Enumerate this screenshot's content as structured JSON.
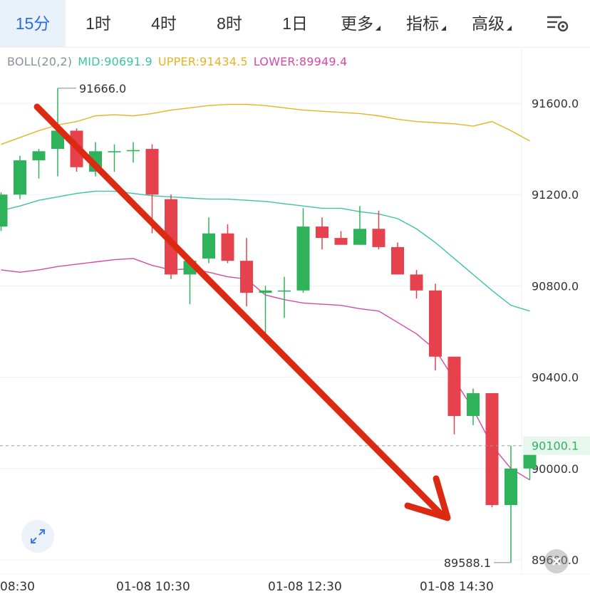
{
  "toolbar": {
    "intervals": [
      "15分",
      "1时",
      "4时",
      "8时",
      "1日"
    ],
    "menus": [
      "更多",
      "指标",
      "高级"
    ],
    "active_index": 0,
    "settings_icon": "chart-settings-icon"
  },
  "indicator": {
    "label": "BOLL(20,2)",
    "mid_text": "MID:90691.9",
    "upper_text": "UPPER:91434.5",
    "lower_text": "LOWER:89949.4",
    "colors": {
      "label": "#8a8f99",
      "mid": "#3cc4a0",
      "upper": "#e6b422",
      "lower": "#d44aa6"
    }
  },
  "chart_data": {
    "type": "candlestick",
    "price_axis": {
      "ticks": [
        91600,
        91200,
        90800,
        90400,
        90000,
        89600
      ],
      "labels": [
        "91600.0",
        "91200.0",
        "90800.0",
        "90400.0",
        "90000.0",
        "89600.0"
      ]
    },
    "time_axis": {
      "labels": [
        "08:30",
        "01-08 10:30",
        "01-08 12:30",
        "01-08 14:30"
      ]
    },
    "high_marker": "91666.0",
    "low_marker": "89588.1",
    "last_price": 90100.1,
    "last_price_label": "90100.1",
    "colors": {
      "up": "#2fb35a",
      "down": "#e5424d",
      "mid": "#3cc4a0",
      "upper": "#e6b422",
      "lower": "#d44aa6",
      "grid": "#eef0f3",
      "arrow": "#dc2a12"
    },
    "candles": [
      {
        "o": 91060,
        "h": 91210,
        "c": 91200,
        "l": 91040
      },
      {
        "o": 91200,
        "h": 91370,
        "c": 91350,
        "l": 91180
      },
      {
        "o": 91350,
        "h": 91400,
        "c": 91390,
        "l": 91270
      },
      {
        "o": 91400,
        "h": 91666,
        "c": 91480,
        "l": 91280
      },
      {
        "o": 91480,
        "h": 91490,
        "c": 91320,
        "l": 91300
      },
      {
        "o": 91300,
        "h": 91430,
        "c": 91390,
        "l": 91280
      },
      {
        "o": 91385,
        "h": 91420,
        "c": 91390,
        "l": 91300
      },
      {
        "o": 91390,
        "h": 91430,
        "c": 91395,
        "l": 91340
      },
      {
        "o": 91400,
        "h": 91420,
        "c": 91200,
        "l": 91030
      },
      {
        "o": 91180,
        "h": 91200,
        "c": 90850,
        "l": 90830
      },
      {
        "o": 90850,
        "h": 90920,
        "c": 90910,
        "l": 90720
      },
      {
        "o": 90920,
        "h": 91100,
        "c": 91030,
        "l": 90900
      },
      {
        "o": 91030,
        "h": 91070,
        "c": 90910,
        "l": 90900
      },
      {
        "o": 90910,
        "h": 91010,
        "c": 90770,
        "l": 90710
      },
      {
        "o": 90770,
        "h": 90800,
        "c": 90780,
        "l": 90560
      },
      {
        "o": 90775,
        "h": 90840,
        "c": 90780,
        "l": 90660
      },
      {
        "o": 90780,
        "h": 91140,
        "c": 91060,
        "l": 90770
      },
      {
        "o": 91060,
        "h": 91100,
        "c": 91010,
        "l": 90960
      },
      {
        "o": 91010,
        "h": 91040,
        "c": 90980,
        "l": 90980
      },
      {
        "o": 90980,
        "h": 91150,
        "c": 91050,
        "l": 90980
      },
      {
        "o": 91050,
        "h": 91130,
        "c": 90970,
        "l": 90960
      },
      {
        "o": 90970,
        "h": 90990,
        "c": 90850,
        "l": 90850
      },
      {
        "o": 90850,
        "h": 90870,
        "c": 90780,
        "l": 90745
      },
      {
        "o": 90780,
        "h": 90810,
        "c": 90490,
        "l": 90430
      },
      {
        "o": 90490,
        "h": 90490,
        "c": 90230,
        "l": 90150
      },
      {
        "o": 90230,
        "h": 90350,
        "c": 90330,
        "l": 90190
      },
      {
        "o": 90330,
        "h": 90330,
        "c": 89840,
        "l": 89830
      },
      {
        "o": 89840,
        "h": 90100,
        "c": 90000,
        "l": 89588.1
      },
      {
        "o": 90000,
        "h": 90125,
        "c": 90100.1,
        "l": 89950
      }
    ],
    "boll_mid": [
      91130,
      91150,
      91175,
      91190,
      91205,
      91215,
      91215,
      91205,
      91195,
      91190,
      91185,
      91180,
      91180,
      91175,
      91170,
      91160,
      91150,
      91140,
      91140,
      91125,
      91115,
      91095,
      91050,
      90990,
      90920,
      90850,
      90780,
      90715,
      90690
    ],
    "boll_upper": [
      91420,
      91450,
      91480,
      91505,
      91520,
      91545,
      91550,
      91545,
      91555,
      91570,
      91580,
      91590,
      91595,
      91595,
      91590,
      91580,
      91570,
      91565,
      91560,
      91555,
      91545,
      91530,
      91520,
      91515,
      91510,
      91500,
      91520,
      91480,
      91435
    ],
    "boll_lower": [
      90870,
      90860,
      90870,
      90885,
      90895,
      90905,
      90915,
      90920,
      90890,
      90870,
      90875,
      90860,
      90840,
      90830,
      90760,
      90740,
      90725,
      90720,
      90715,
      90700,
      90690,
      90640,
      90590,
      90520,
      90390,
      90260,
      90100,
      90000,
      89950
    ]
  }
}
